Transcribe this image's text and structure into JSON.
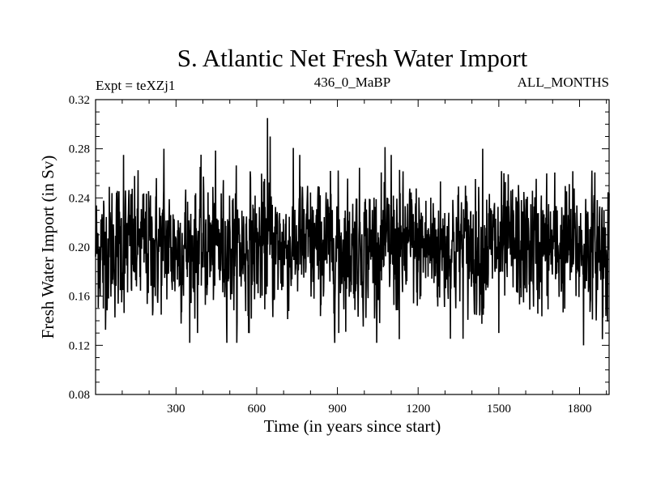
{
  "chart_data": {
    "type": "line",
    "title": "S. Atlantic Net Fresh Water Import",
    "subtitle_left": "Expt = teXZj1",
    "subtitle_center": "436_0_MaBP",
    "subtitle_right": "ALL_MONTHS",
    "xlabel": "Time (in years since start)",
    "ylabel": "Fresh Water Import (in Sv)",
    "xlim": [
      1,
      1910
    ],
    "ylim": [
      0.08,
      0.32
    ],
    "xticks": [
      300,
      600,
      900,
      1200,
      1500,
      1800
    ],
    "xtick_labels": [
      "300",
      "600",
      "900",
      "1200",
      "1500",
      "1800"
    ],
    "yticks": [
      0.08,
      0.12,
      0.16,
      0.2,
      0.24,
      0.28,
      0.32
    ],
    "ytick_labels": [
      "0.08",
      "0.12",
      "0.16",
      "0.20",
      "0.24",
      "0.28",
      "0.32"
    ],
    "series": [
      {
        "name": "Fresh Water Import",
        "mean": 0.2,
        "std": 0.026,
        "n_points": 1910,
        "notable_points": [
          {
            "x": 30,
            "y": 0.15
          },
          {
            "x": 105,
            "y": 0.275
          },
          {
            "x": 255,
            "y": 0.28
          },
          {
            "x": 380,
            "y": 0.13
          },
          {
            "x": 570,
            "y": 0.13
          },
          {
            "x": 640,
            "y": 0.305
          },
          {
            "x": 650,
            "y": 0.29
          },
          {
            "x": 760,
            "y": 0.275
          },
          {
            "x": 905,
            "y": 0.13
          },
          {
            "x": 1100,
            "y": 0.275
          },
          {
            "x": 1130,
            "y": 0.125
          },
          {
            "x": 1440,
            "y": 0.28
          },
          {
            "x": 1500,
            "y": 0.13
          },
          {
            "x": 1815,
            "y": 0.12
          },
          {
            "x": 1885,
            "y": 0.125
          }
        ]
      }
    ]
  }
}
